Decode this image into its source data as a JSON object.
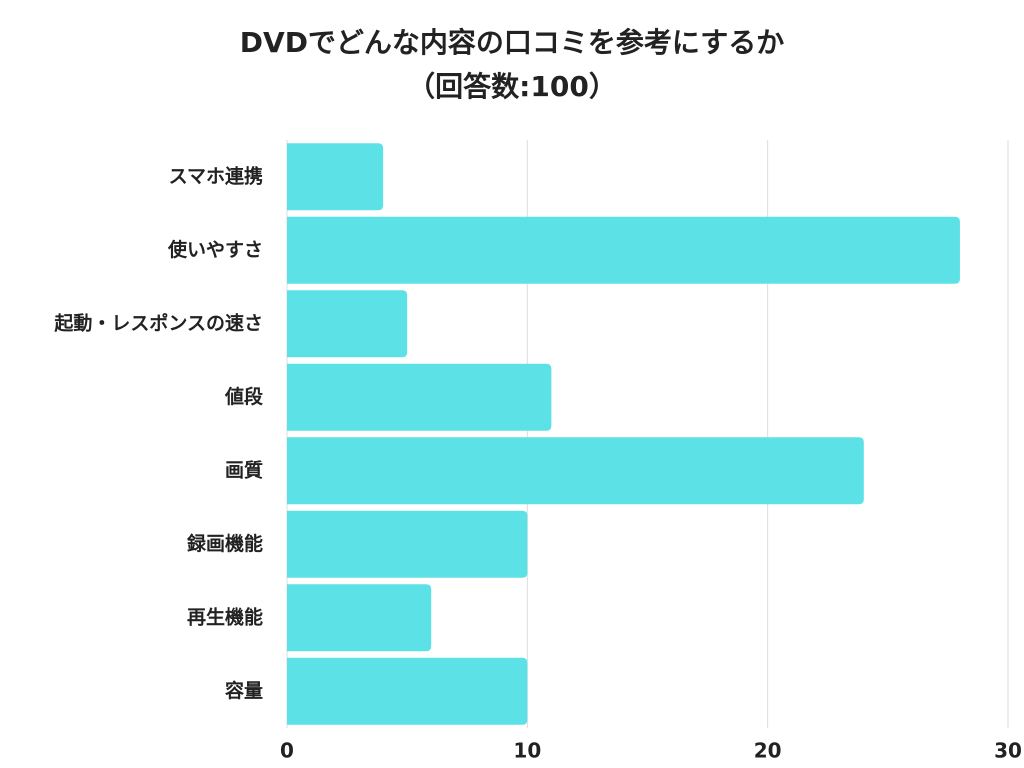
{
  "chart_data": {
    "type": "bar",
    "orientation": "horizontal",
    "title": "DVDでどんな内容の口コミを参考にするか",
    "subtitle": "（回答数:100）",
    "categories": [
      "スマホ連携",
      "使いやすさ",
      "起動・レスポンスの速さ",
      "値段",
      "画質",
      "録画機能",
      "再生機能",
      "容量"
    ],
    "values": [
      4,
      28,
      5,
      11,
      24,
      10,
      6,
      10
    ],
    "color": "#5ce1e6",
    "xlim": [
      0,
      30
    ],
    "xticks": [
      0,
      10,
      20,
      30
    ],
    "grid": true
  }
}
